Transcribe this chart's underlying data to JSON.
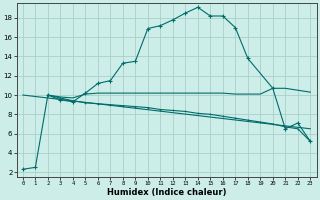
{
  "bg_color": "#cdeee8",
  "grid_color": "#aacfca",
  "line_color": "#006b6b",
  "xlabel": "Humidex (Indice chaleur)",
  "xlim": [
    -0.5,
    23.5
  ],
  "ylim": [
    1.5,
    19.5
  ],
  "yticks": [
    2,
    4,
    6,
    8,
    10,
    12,
    14,
    16,
    18
  ],
  "xticks": [
    0,
    1,
    2,
    3,
    4,
    5,
    6,
    7,
    8,
    9,
    10,
    11,
    12,
    13,
    14,
    15,
    16,
    17,
    18,
    19,
    20,
    21,
    22,
    23
  ],
  "line1_x": [
    0,
    1,
    2,
    3,
    4,
    5,
    6,
    7,
    8,
    9,
    10,
    11,
    12,
    13,
    14,
    15,
    16,
    17,
    18,
    20,
    21,
    22,
    23
  ],
  "line1_y": [
    2.3,
    2.5,
    10.0,
    9.5,
    9.3,
    10.2,
    11.2,
    11.5,
    13.3,
    13.5,
    16.9,
    17.2,
    17.8,
    18.5,
    19.1,
    18.2,
    18.2,
    17.0,
    13.8,
    10.7,
    6.5,
    7.1,
    5.2
  ],
  "line2_x": [
    2,
    3,
    4,
    5,
    6,
    7,
    8,
    9,
    10,
    11,
    12,
    13,
    14,
    15,
    16,
    17,
    18,
    19,
    20,
    21,
    22,
    23
  ],
  "line2_y": [
    10.0,
    9.7,
    9.4,
    9.2,
    9.1,
    9.0,
    8.9,
    8.8,
    8.7,
    8.5,
    8.4,
    8.3,
    8.1,
    8.0,
    7.8,
    7.6,
    7.4,
    7.2,
    7.0,
    6.7,
    6.5,
    5.2
  ],
  "line3_x": [
    2,
    3,
    4,
    5,
    6,
    7,
    8,
    9,
    10,
    11,
    12,
    13,
    14,
    15,
    16,
    17,
    18,
    19,
    20,
    21,
    22,
    23
  ],
  "line3_y": [
    10.0,
    9.8,
    9.7,
    10.1,
    10.2,
    10.2,
    10.2,
    10.2,
    10.2,
    10.2,
    10.2,
    10.2,
    10.2,
    10.2,
    10.2,
    10.1,
    10.1,
    10.1,
    10.7,
    10.7,
    10.5,
    10.3
  ],
  "line4_x": [
    0,
    23
  ],
  "line4_y": [
    10.0,
    6.5
  ]
}
